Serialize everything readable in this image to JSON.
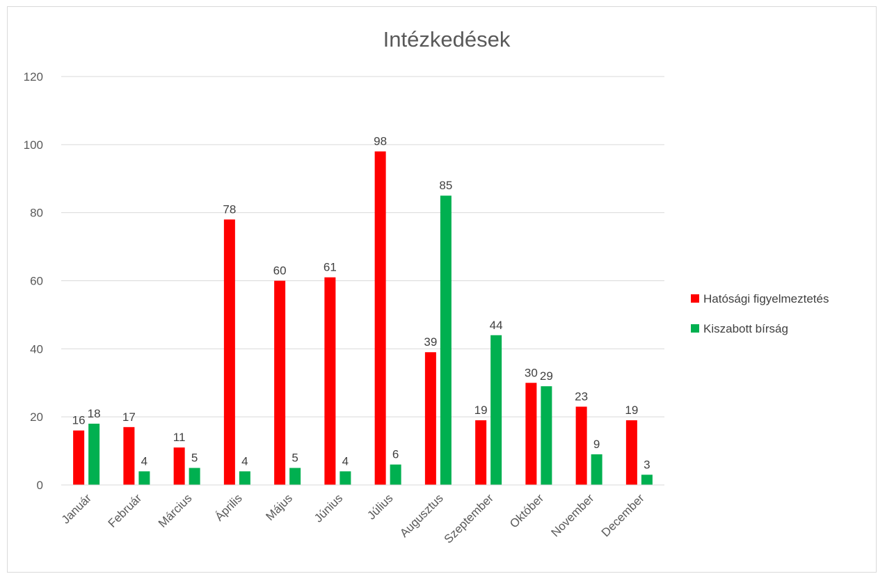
{
  "chart_data": {
    "type": "bar",
    "title": "Intézkedések",
    "categories": [
      "Január",
      "Február",
      "Március",
      "Április",
      "Május",
      "Június",
      "Július",
      "Augusztus",
      "Szeptember",
      "Október",
      "November",
      "December"
    ],
    "series": [
      {
        "name": "Hatósági figyelmeztetés",
        "color": "#ff0000",
        "values": [
          16,
          17,
          11,
          78,
          60,
          61,
          98,
          39,
          19,
          30,
          23,
          19
        ]
      },
      {
        "name": "Kiszabott bírság",
        "color": "#00b050",
        "values": [
          18,
          4,
          5,
          4,
          5,
          4,
          6,
          85,
          44,
          29,
          9,
          3
        ]
      }
    ],
    "ylim": [
      0,
      120
    ],
    "yticks": [
      0,
      20,
      40,
      60,
      80,
      100,
      120
    ],
    "grid": true,
    "legend": "right"
  }
}
